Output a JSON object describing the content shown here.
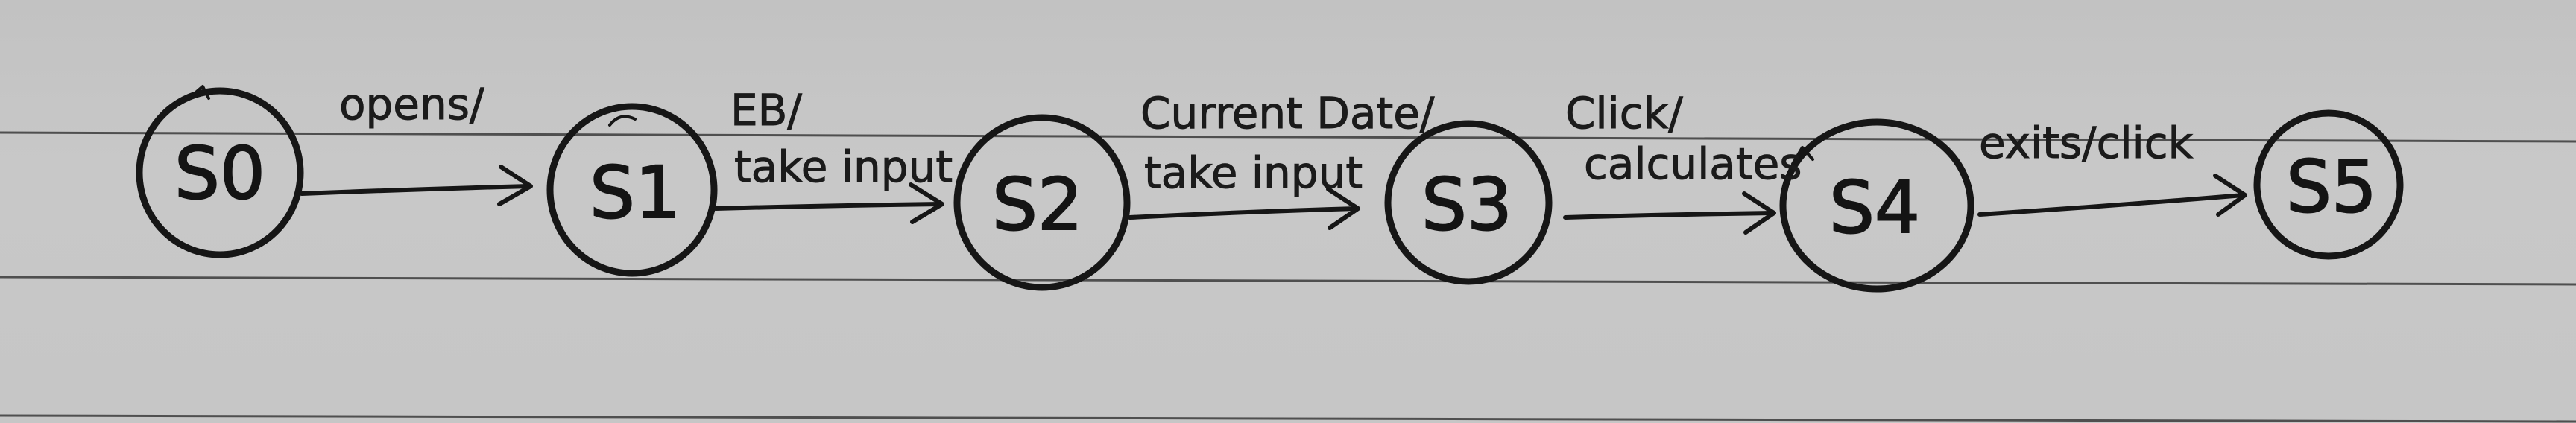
{
  "diagram": {
    "states": [
      {
        "label": "S0"
      },
      {
        "label": "S1"
      },
      {
        "label": "S2"
      },
      {
        "label": "S3"
      },
      {
        "label": "S4"
      },
      {
        "label": "S5"
      }
    ],
    "transitions": [
      {
        "from": "S0",
        "to": "S1",
        "label": "opens/",
        "label2": ""
      },
      {
        "from": "S1",
        "to": "S2",
        "label": "EB/",
        "label2": "take input"
      },
      {
        "from": "S2",
        "to": "S3",
        "label": "Current Date/",
        "label2": "take input"
      },
      {
        "from": "S3",
        "to": "S4",
        "label": "Click/",
        "label2": "calculates"
      },
      {
        "from": "S4",
        "to": "S5",
        "label": "exits/click",
        "label2": ""
      }
    ],
    "colors": {
      "paper": "#c6c6c6",
      "ink": "#161616",
      "rule": "#3a3a3a"
    }
  }
}
